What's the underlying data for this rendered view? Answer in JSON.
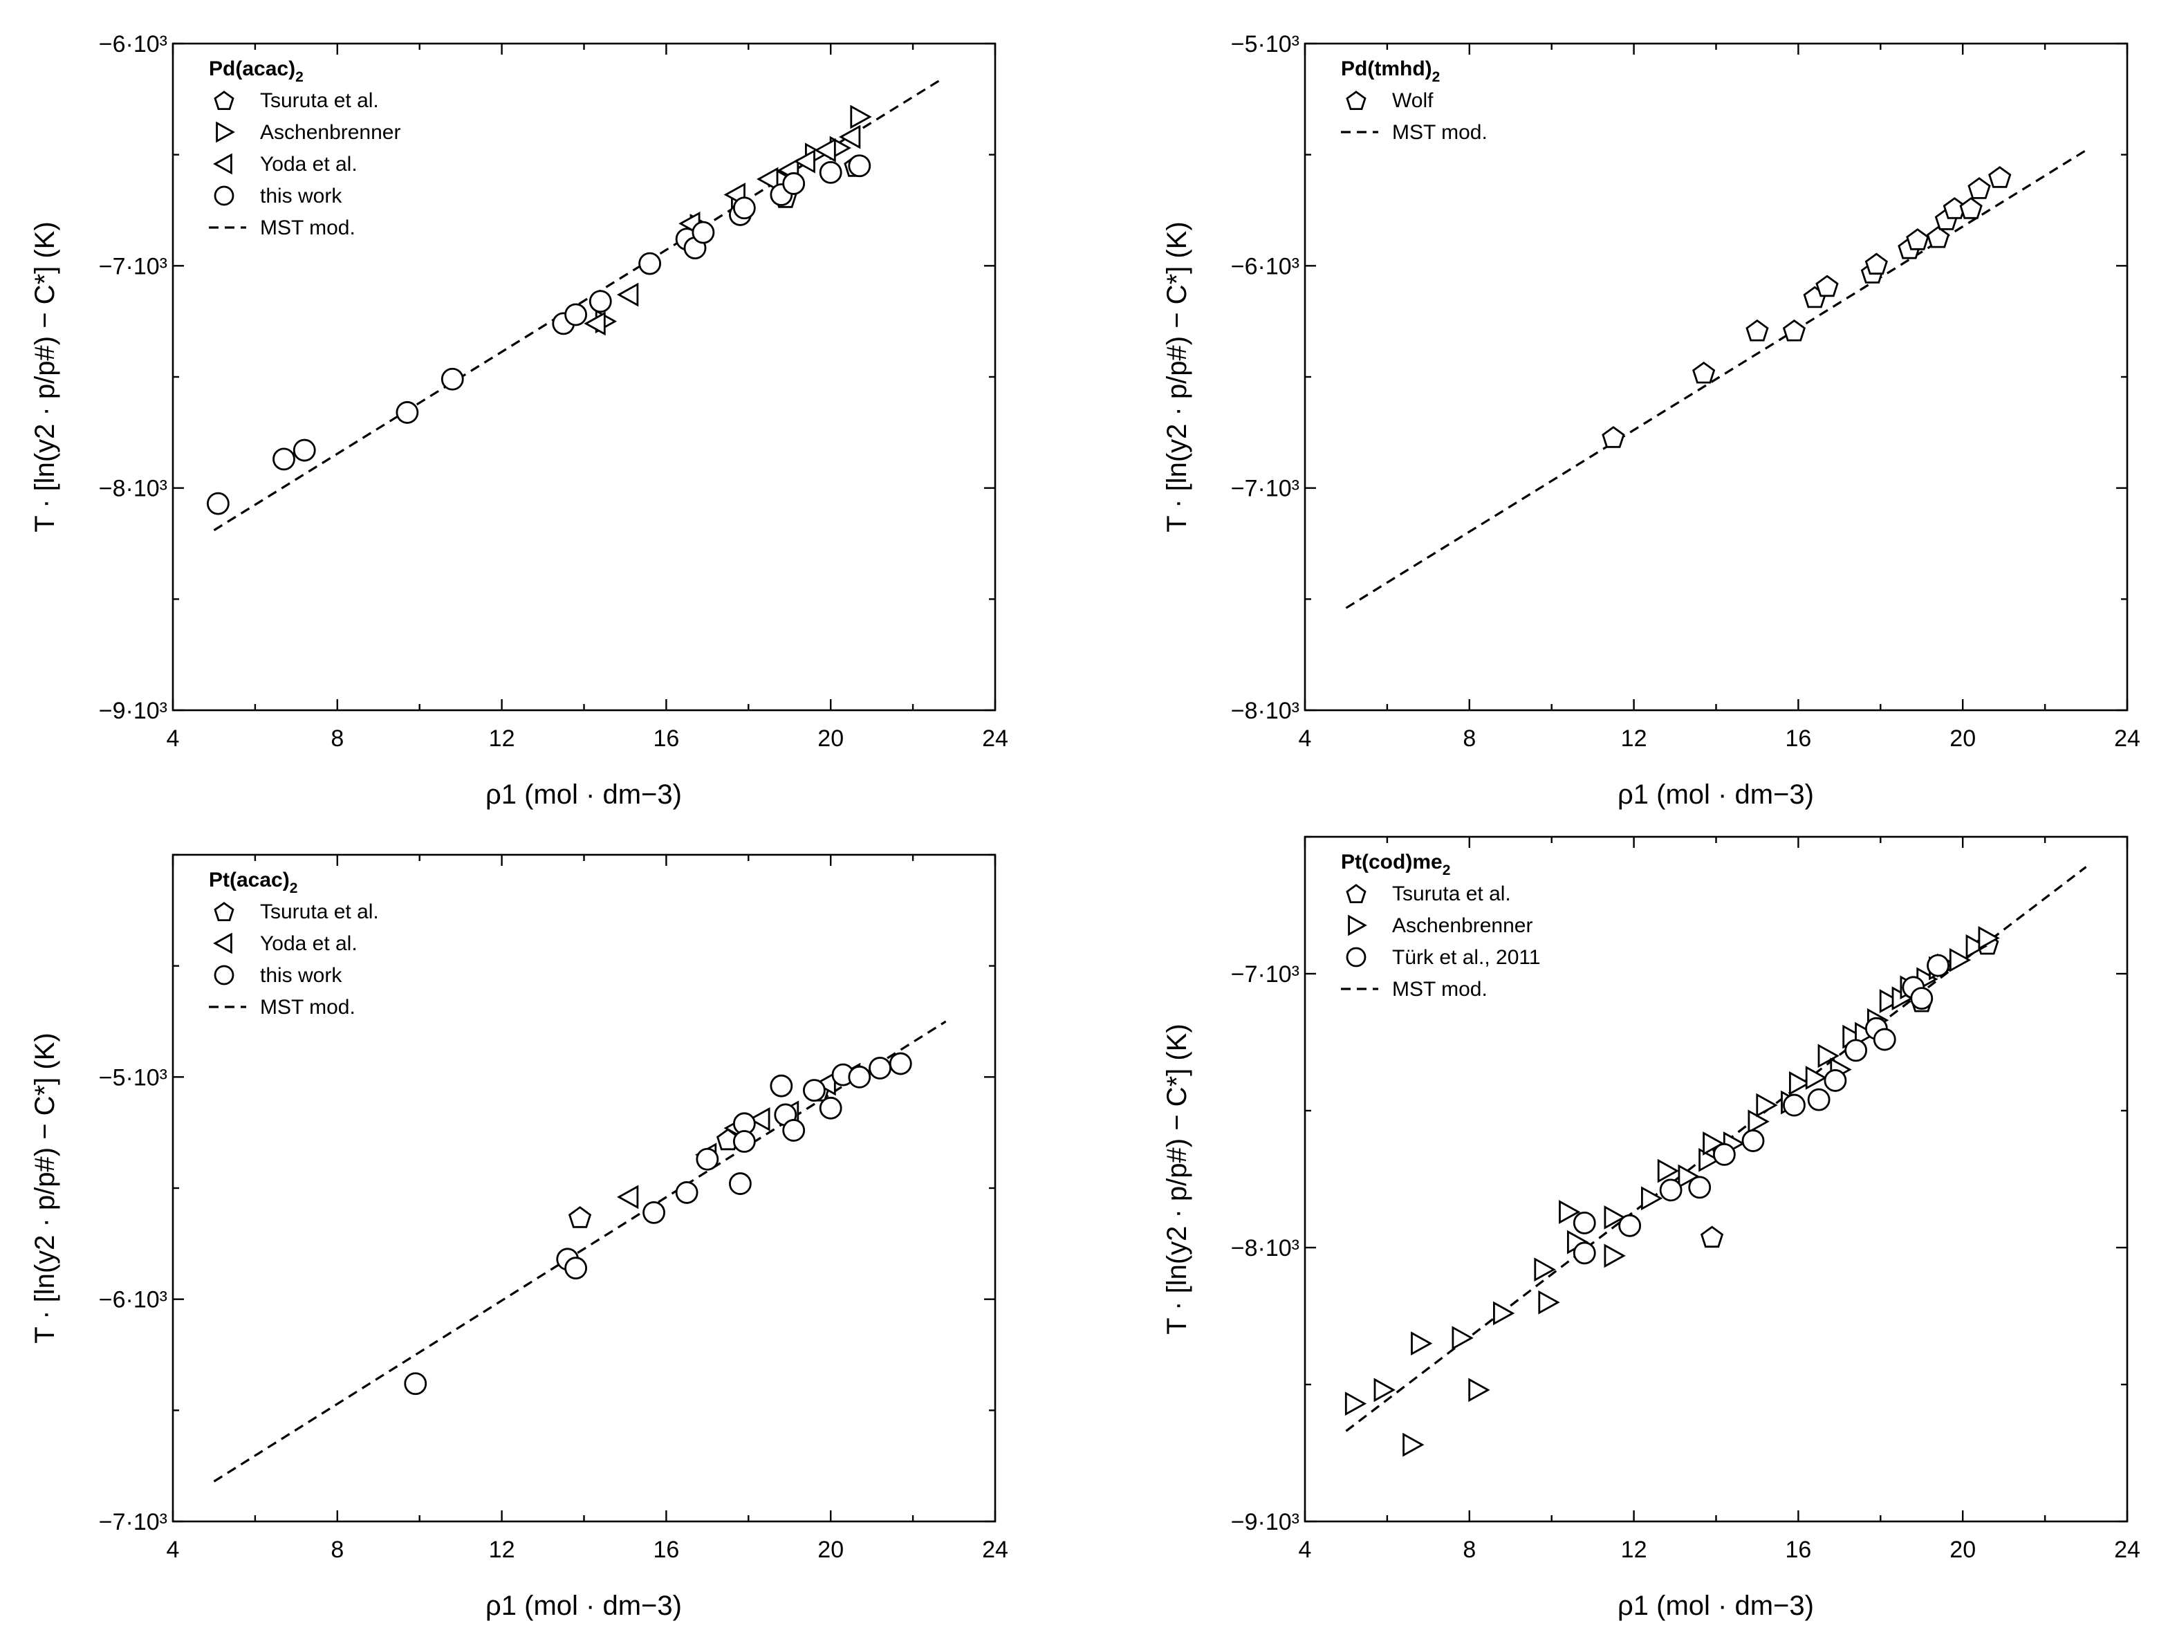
{
  "chart_data": [
    {
      "type": "scatter",
      "title": "Pd(acac)2",
      "xlabel": "ρ1 (mol · dm−3)",
      "ylabel": "T · [ln(y2 · p/p#) − C*] (K)",
      "xlim": [
        4,
        24
      ],
      "ylim": [
        -9000,
        -6000
      ],
      "xticks": [
        4,
        8,
        12,
        16,
        20,
        24
      ],
      "yticks": [
        {
          "value": -6000,
          "label": "−6·10³"
        },
        {
          "value": -7000,
          "label": "−7·10³"
        },
        {
          "value": -8000,
          "label": "−8·10³"
        },
        {
          "value": -9000,
          "label": "−9·10³"
        }
      ],
      "legend": "top-left",
      "series": [
        {
          "name": "Tsuruta et al.",
          "marker": "pentagon",
          "points": [
            [
              18.9,
              -6690
            ],
            [
              20.6,
              -6550
            ]
          ]
        },
        {
          "name": "Aschenbrenner",
          "marker": "triangle-right",
          "points": [
            [
              14.5,
              -7250
            ],
            [
              16.8,
              -6820
            ],
            [
              17.8,
              -6740
            ],
            [
              18.9,
              -6620
            ],
            [
              19.6,
              -6500
            ],
            [
              20.2,
              -6470
            ],
            [
              20.7,
              -6330
            ]
          ]
        },
        {
          "name": "Yoda et al.",
          "marker": "triangle-left",
          "points": [
            [
              14.3,
              -7260
            ],
            [
              15.1,
              -7130
            ],
            [
              16.6,
              -6810
            ],
            [
              17.7,
              -6680
            ],
            [
              18.5,
              -6610
            ],
            [
              19.0,
              -6570
            ],
            [
              19.4,
              -6530
            ],
            [
              19.9,
              -6480
            ],
            [
              20.5,
              -6420
            ]
          ]
        },
        {
          "name": "this work",
          "marker": "circle",
          "points": [
            [
              5.1,
              -8070
            ],
            [
              6.7,
              -7870
            ],
            [
              7.2,
              -7830
            ],
            [
              9.7,
              -7660
            ],
            [
              10.8,
              -7510
            ],
            [
              13.5,
              -7260
            ],
            [
              13.8,
              -7220
            ],
            [
              14.4,
              -7160
            ],
            [
              15.6,
              -6990
            ],
            [
              16.5,
              -6880
            ],
            [
              16.7,
              -6920
            ],
            [
              16.9,
              -6850
            ],
            [
              17.8,
              -6770
            ],
            [
              17.9,
              -6740
            ],
            [
              18.8,
              -6680
            ],
            [
              19.1,
              -6630
            ],
            [
              20.0,
              -6580
            ],
            [
              20.7,
              -6550
            ]
          ]
        }
      ],
      "fit": {
        "name": "MST mod.",
        "points": [
          [
            5.0,
            -8190
          ],
          [
            22.7,
            -6160
          ]
        ]
      }
    },
    {
      "type": "scatter",
      "title": "Pd(tmhd)2",
      "xlabel": "ρ1 (mol · dm−3)",
      "ylabel": "T · [ln(y2 · p/p#) − C*] (K)",
      "xlim": [
        4,
        24
      ],
      "ylim": [
        -8000,
        -5000
      ],
      "xticks": [
        4,
        8,
        12,
        16,
        20,
        24
      ],
      "yticks": [
        {
          "value": -5000,
          "label": "−5·10³"
        },
        {
          "value": -6000,
          "label": "−6·10³"
        },
        {
          "value": -7000,
          "label": "−7·10³"
        },
        {
          "value": -8000,
          "label": "−8·10³"
        }
      ],
      "legend": "top-left",
      "series": [
        {
          "name": "Wolf",
          "marker": "pentagon",
          "points": [
            [
              11.5,
              -6770
            ],
            [
              13.7,
              -6480
            ],
            [
              15.0,
              -6290
            ],
            [
              15.9,
              -6290
            ],
            [
              16.4,
              -6140
            ],
            [
              16.7,
              -6090
            ],
            [
              17.8,
              -6030
            ],
            [
              17.9,
              -5990
            ],
            [
              18.7,
              -5920
            ],
            [
              18.9,
              -5880
            ],
            [
              19.4,
              -5870
            ],
            [
              19.6,
              -5790
            ],
            [
              19.8,
              -5740
            ],
            [
              20.2,
              -5740
            ],
            [
              20.4,
              -5650
            ],
            [
              20.9,
              -5600
            ]
          ]
        }
      ],
      "fit": {
        "name": "MST mod.",
        "points": [
          [
            5.0,
            -7540
          ],
          [
            23.0,
            -5480
          ]
        ]
      }
    },
    {
      "type": "scatter",
      "title": "Pt(acac)2",
      "xlabel": "ρ1 (mol · dm−3)",
      "ylabel": "T · [ln(y2 · p/p#) − C*] (K)",
      "xlim": [
        4,
        24
      ],
      "ylim": [
        -7000,
        -4000
      ],
      "xticks": [
        4,
        8,
        12,
        16,
        20,
        24
      ],
      "yticks": [
        {
          "value": -5000,
          "label": "−5·10³"
        },
        {
          "value": -6000,
          "label": "−6·10³"
        },
        {
          "value": -7000,
          "label": "−7·10³"
        }
      ],
      "legend": "top-left",
      "series": [
        {
          "name": "Tsuruta et al.",
          "marker": "pentagon",
          "points": [
            [
              13.9,
              -5630
            ],
            [
              17.5,
              -5280
            ],
            [
              19.7,
              -5060
            ]
          ]
        },
        {
          "name": "Yoda et al.",
          "marker": "triangle-left",
          "points": [
            [
              15.1,
              -5540
            ],
            [
              17.0,
              -5350
            ],
            [
              17.7,
              -5230
            ],
            [
              18.3,
              -5190
            ],
            [
              19.0,
              -5160
            ],
            [
              19.9,
              -5030
            ],
            [
              20.5,
              -4990
            ]
          ]
        },
        {
          "name": "this work",
          "marker": "circle",
          "points": [
            [
              9.9,
              -6380
            ],
            [
              13.6,
              -5820
            ],
            [
              13.8,
              -5860
            ],
            [
              15.7,
              -5610
            ],
            [
              16.5,
              -5520
            ],
            [
              17.0,
              -5370
            ],
            [
              17.8,
              -5480
            ],
            [
              17.9,
              -5210
            ],
            [
              17.9,
              -5290
            ],
            [
              18.8,
              -5040
            ],
            [
              18.9,
              -5170
            ],
            [
              19.1,
              -5240
            ],
            [
              19.6,
              -5060
            ],
            [
              20.0,
              -5140
            ],
            [
              20.3,
              -4990
            ],
            [
              20.7,
              -5000
            ],
            [
              21.2,
              -4960
            ],
            [
              21.7,
              -4940
            ]
          ]
        }
      ],
      "fit": {
        "name": "MST mod.",
        "points": [
          [
            5.0,
            -6820
          ],
          [
            22.8,
            -4750
          ]
        ]
      }
    },
    {
      "type": "scatter",
      "title": "Pt(cod)me2",
      "xlabel": "ρ1 (mol · dm−3)",
      "ylabel": "T · [ln(y2 · p/p#) − C*] (K)",
      "xlim": [
        4,
        24
      ],
      "ylim": [
        -9000,
        -6500
      ],
      "xticks": [
        4,
        8,
        12,
        16,
        20,
        24
      ],
      "yticks": [
        {
          "value": -7000,
          "label": "−7·10³"
        },
        {
          "value": -8000,
          "label": "−8·10³"
        },
        {
          "value": -9000,
          "label": "−9·10³"
        }
      ],
      "legend": "top-left",
      "series": [
        {
          "name": "Tsuruta et al.",
          "marker": "pentagon",
          "points": [
            [
              13.9,
              -7960
            ],
            [
              19.0,
              -7100
            ],
            [
              20.6,
              -6890
            ]
          ]
        },
        {
          "name": "Aschenbrenner",
          "marker": "triangle-right",
          "points": [
            [
              5.2,
              -8570
            ],
            [
              5.9,
              -8520
            ],
            [
              6.6,
              -8720
            ],
            [
              6.8,
              -8350
            ],
            [
              7.8,
              -8330
            ],
            [
              8.2,
              -8520
            ],
            [
              8.8,
              -8240
            ],
            [
              9.8,
              -8080
            ],
            [
              9.9,
              -8200
            ],
            [
              10.4,
              -7870
            ],
            [
              10.6,
              -7980
            ],
            [
              11.5,
              -7890
            ],
            [
              11.5,
              -8030
            ],
            [
              12.4,
              -7820
            ],
            [
              12.8,
              -7720
            ],
            [
              13.3,
              -7740
            ],
            [
              13.8,
              -7680
            ],
            [
              13.9,
              -7620
            ],
            [
              14.4,
              -7620
            ],
            [
              15.0,
              -7540
            ],
            [
              15.2,
              -7480
            ],
            [
              15.8,
              -7470
            ],
            [
              16.0,
              -7400
            ],
            [
              16.4,
              -7380
            ],
            [
              16.7,
              -7300
            ],
            [
              17.0,
              -7350
            ],
            [
              17.3,
              -7230
            ],
            [
              17.6,
              -7220
            ],
            [
              17.9,
              -7170
            ],
            [
              18.2,
              -7100
            ],
            [
              18.5,
              -7090
            ],
            [
              18.7,
              -7050
            ],
            [
              19.1,
              -7020
            ],
            [
              19.4,
              -6980
            ],
            [
              19.6,
              -6970
            ],
            [
              19.9,
              -6950
            ],
            [
              20.3,
              -6900
            ],
            [
              20.6,
              -6870
            ]
          ]
        },
        {
          "name": "Türk et al., 2011",
          "marker": "circle",
          "points": [
            [
              10.8,
              -8020
            ],
            [
              10.8,
              -7910
            ],
            [
              11.9,
              -7920
            ],
            [
              12.9,
              -7790
            ],
            [
              13.6,
              -7780
            ],
            [
              14.2,
              -7660
            ],
            [
              14.9,
              -7610
            ],
            [
              15.9,
              -7480
            ],
            [
              16.5,
              -7460
            ],
            [
              16.9,
              -7390
            ],
            [
              17.4,
              -7280
            ],
            [
              17.9,
              -7200
            ],
            [
              18.1,
              -7240
            ],
            [
              18.8,
              -7050
            ],
            [
              19.0,
              -7090
            ],
            [
              19.4,
              -6970
            ]
          ]
        }
      ],
      "fit": {
        "name": "MST mod.",
        "points": [
          [
            5.0,
            -8670
          ],
          [
            23.0,
            -6610
          ]
        ]
      }
    }
  ]
}
